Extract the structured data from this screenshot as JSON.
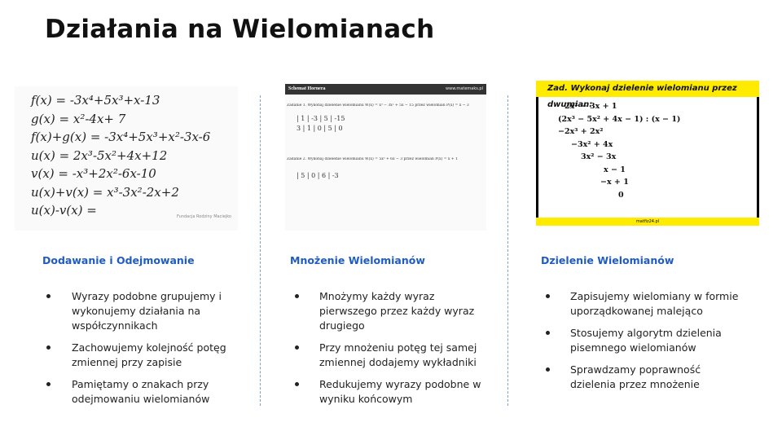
{
  "title": "Działania na Wielomianach",
  "columns": [
    {
      "image": {
        "lines": [
          "f(x) = -3x⁴+5x³+x-13",
          "g(x) =      x²-4x+     7",
          "f(x)+g(x) = -3x⁴+5x³+x²-3x-6",
          "u(x) = 2x³-5x²+4x+12",
          "v(x) = -x³+2x²-6x-10",
          "u(x)+v(x) = x³-3x²-2x+2",
          "u(x)-v(x) ="
        ],
        "caption": "Fundacja Rodziny Maciejko"
      },
      "heading": "Dodawanie i Odejmowanie",
      "bullets": [
        "Wyrazy podobne grupujemy i wykonujemy działania na współczynnikach",
        "Zachowujemy kolejność potęg zmiennej przy zapisie",
        "Pamiętamy o znakach przy odejmowaniu wielomianów"
      ]
    },
    {
      "image": {
        "header": "Schemat Hornera",
        "site": "www.matemaks.pl",
        "lines": [
          "Zadanie 1. Wykonaj dzielenie wielomianu W(x) = x³ − 3x² + 5x − 15 przez wielomian P(x) = x − 3",
          "| 1 | -3 | 5 | -15",
          "3 | 1 | 0 | 5 | 0",
          "Zadanie 2. Wykonaj dzielenie wielomianu W(x) = 5x³ + 6x − 3 przez wielomian P(x) = x + 1",
          "| 5 | 0 | 6 | -3"
        ]
      },
      "heading": "Mnożenie Wielomianów",
      "bullets": [
        "Mnożymy każdy wyraz pierwszego przez każdy wyraz drugiego",
        "Przy mnożeniu potęg tej samej zmiennej dodajemy wykładniki",
        "Redukujemy wyrazy podobne w wyniku końcowym"
      ]
    },
    {
      "image": {
        "header": "Zad. Wykonaj dzielenie wielomianu przez dwumian:",
        "site": "matfiz24.pl",
        "lines": [
          "2x² − 3x + 1",
          "(2x³ − 5x² + 4x − 1) : (x − 1)",
          "−2x³ + 2x²",
          "−3x² + 4x",
          "3x² − 3x",
          "x − 1",
          "−x + 1",
          "0"
        ]
      },
      "heading": "Dzielenie Wielomianów",
      "bullets": [
        "Zapisujemy wielomiany w formie uporządkowanej malejąco",
        "Stosujemy algorytm dzielenia pisemnego wielomianów",
        "Sprawdzamy poprawność dzielenia przez mnożenie"
      ]
    }
  ]
}
